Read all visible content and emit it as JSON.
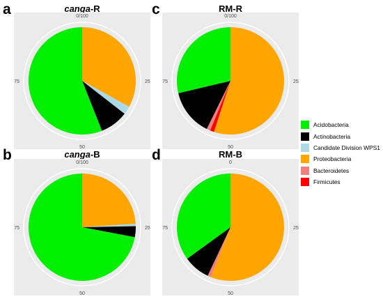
{
  "chart_data": [
    {
      "type": "pie",
      "panel": "a",
      "title_italic": "canga",
      "title_suffix": "-R",
      "tick_labels": [
        "0/100",
        "25",
        "50",
        "75"
      ],
      "series": [
        {
          "name": "Proteobacteria",
          "value": 33
        },
        {
          "name": "Candidate Division WPS1",
          "value": 2.5
        },
        {
          "name": "Actinobacteria",
          "value": 8.5
        },
        {
          "name": "Acidobacteria",
          "value": 56
        }
      ]
    },
    {
      "type": "pie",
      "panel": "b",
      "title_italic": "canga",
      "title_suffix": "-B",
      "tick_labels": [
        "0/100",
        "25",
        "50",
        "75"
      ],
      "series": [
        {
          "name": "Proteobacteria",
          "value": 24
        },
        {
          "name": "Candidate Division WPS1",
          "value": 0.7
        },
        {
          "name": "Actinobacteria",
          "value": 3.3
        },
        {
          "name": "Acidobacteria",
          "value": 72
        }
      ]
    },
    {
      "type": "pie",
      "panel": "c",
      "title_italic": "",
      "title_suffix": "RM-R",
      "tick_labels": [
        "0/100",
        "25",
        "50",
        "75"
      ],
      "series": [
        {
          "name": "Proteobacteria",
          "value": 55
        },
        {
          "name": "Firmicutes",
          "value": 1.2
        },
        {
          "name": "Bacteroidetes",
          "value": 1.1
        },
        {
          "name": "Actinobacteria",
          "value": 14
        },
        {
          "name": "Acidobacteria",
          "value": 28.7
        }
      ]
    },
    {
      "type": "pie",
      "panel": "d",
      "title_italic": "",
      "title_suffix": "RM-B",
      "tick_labels": [
        "0",
        "25",
        "50",
        "75"
      ],
      "series": [
        {
          "name": "Proteobacteria",
          "value": 56
        },
        {
          "name": "Bacteroidetes",
          "value": 1
        },
        {
          "name": "Actinobacteria",
          "value": 8
        },
        {
          "name": "Acidobacteria",
          "value": 35
        }
      ]
    }
  ],
  "legend": [
    {
      "name": "Acidobacteria",
      "color": "#00ee00"
    },
    {
      "name": "Actinobacteria",
      "color": "#000000"
    },
    {
      "name": "Candidate Division WPS1",
      "color": "#add8e6"
    },
    {
      "name": "Proteobacteria",
      "color": "#ffa500"
    },
    {
      "name": "Bacteroidetes",
      "color": "#f08080"
    },
    {
      "name": "Firmicutes",
      "color": "#ff0000"
    }
  ]
}
